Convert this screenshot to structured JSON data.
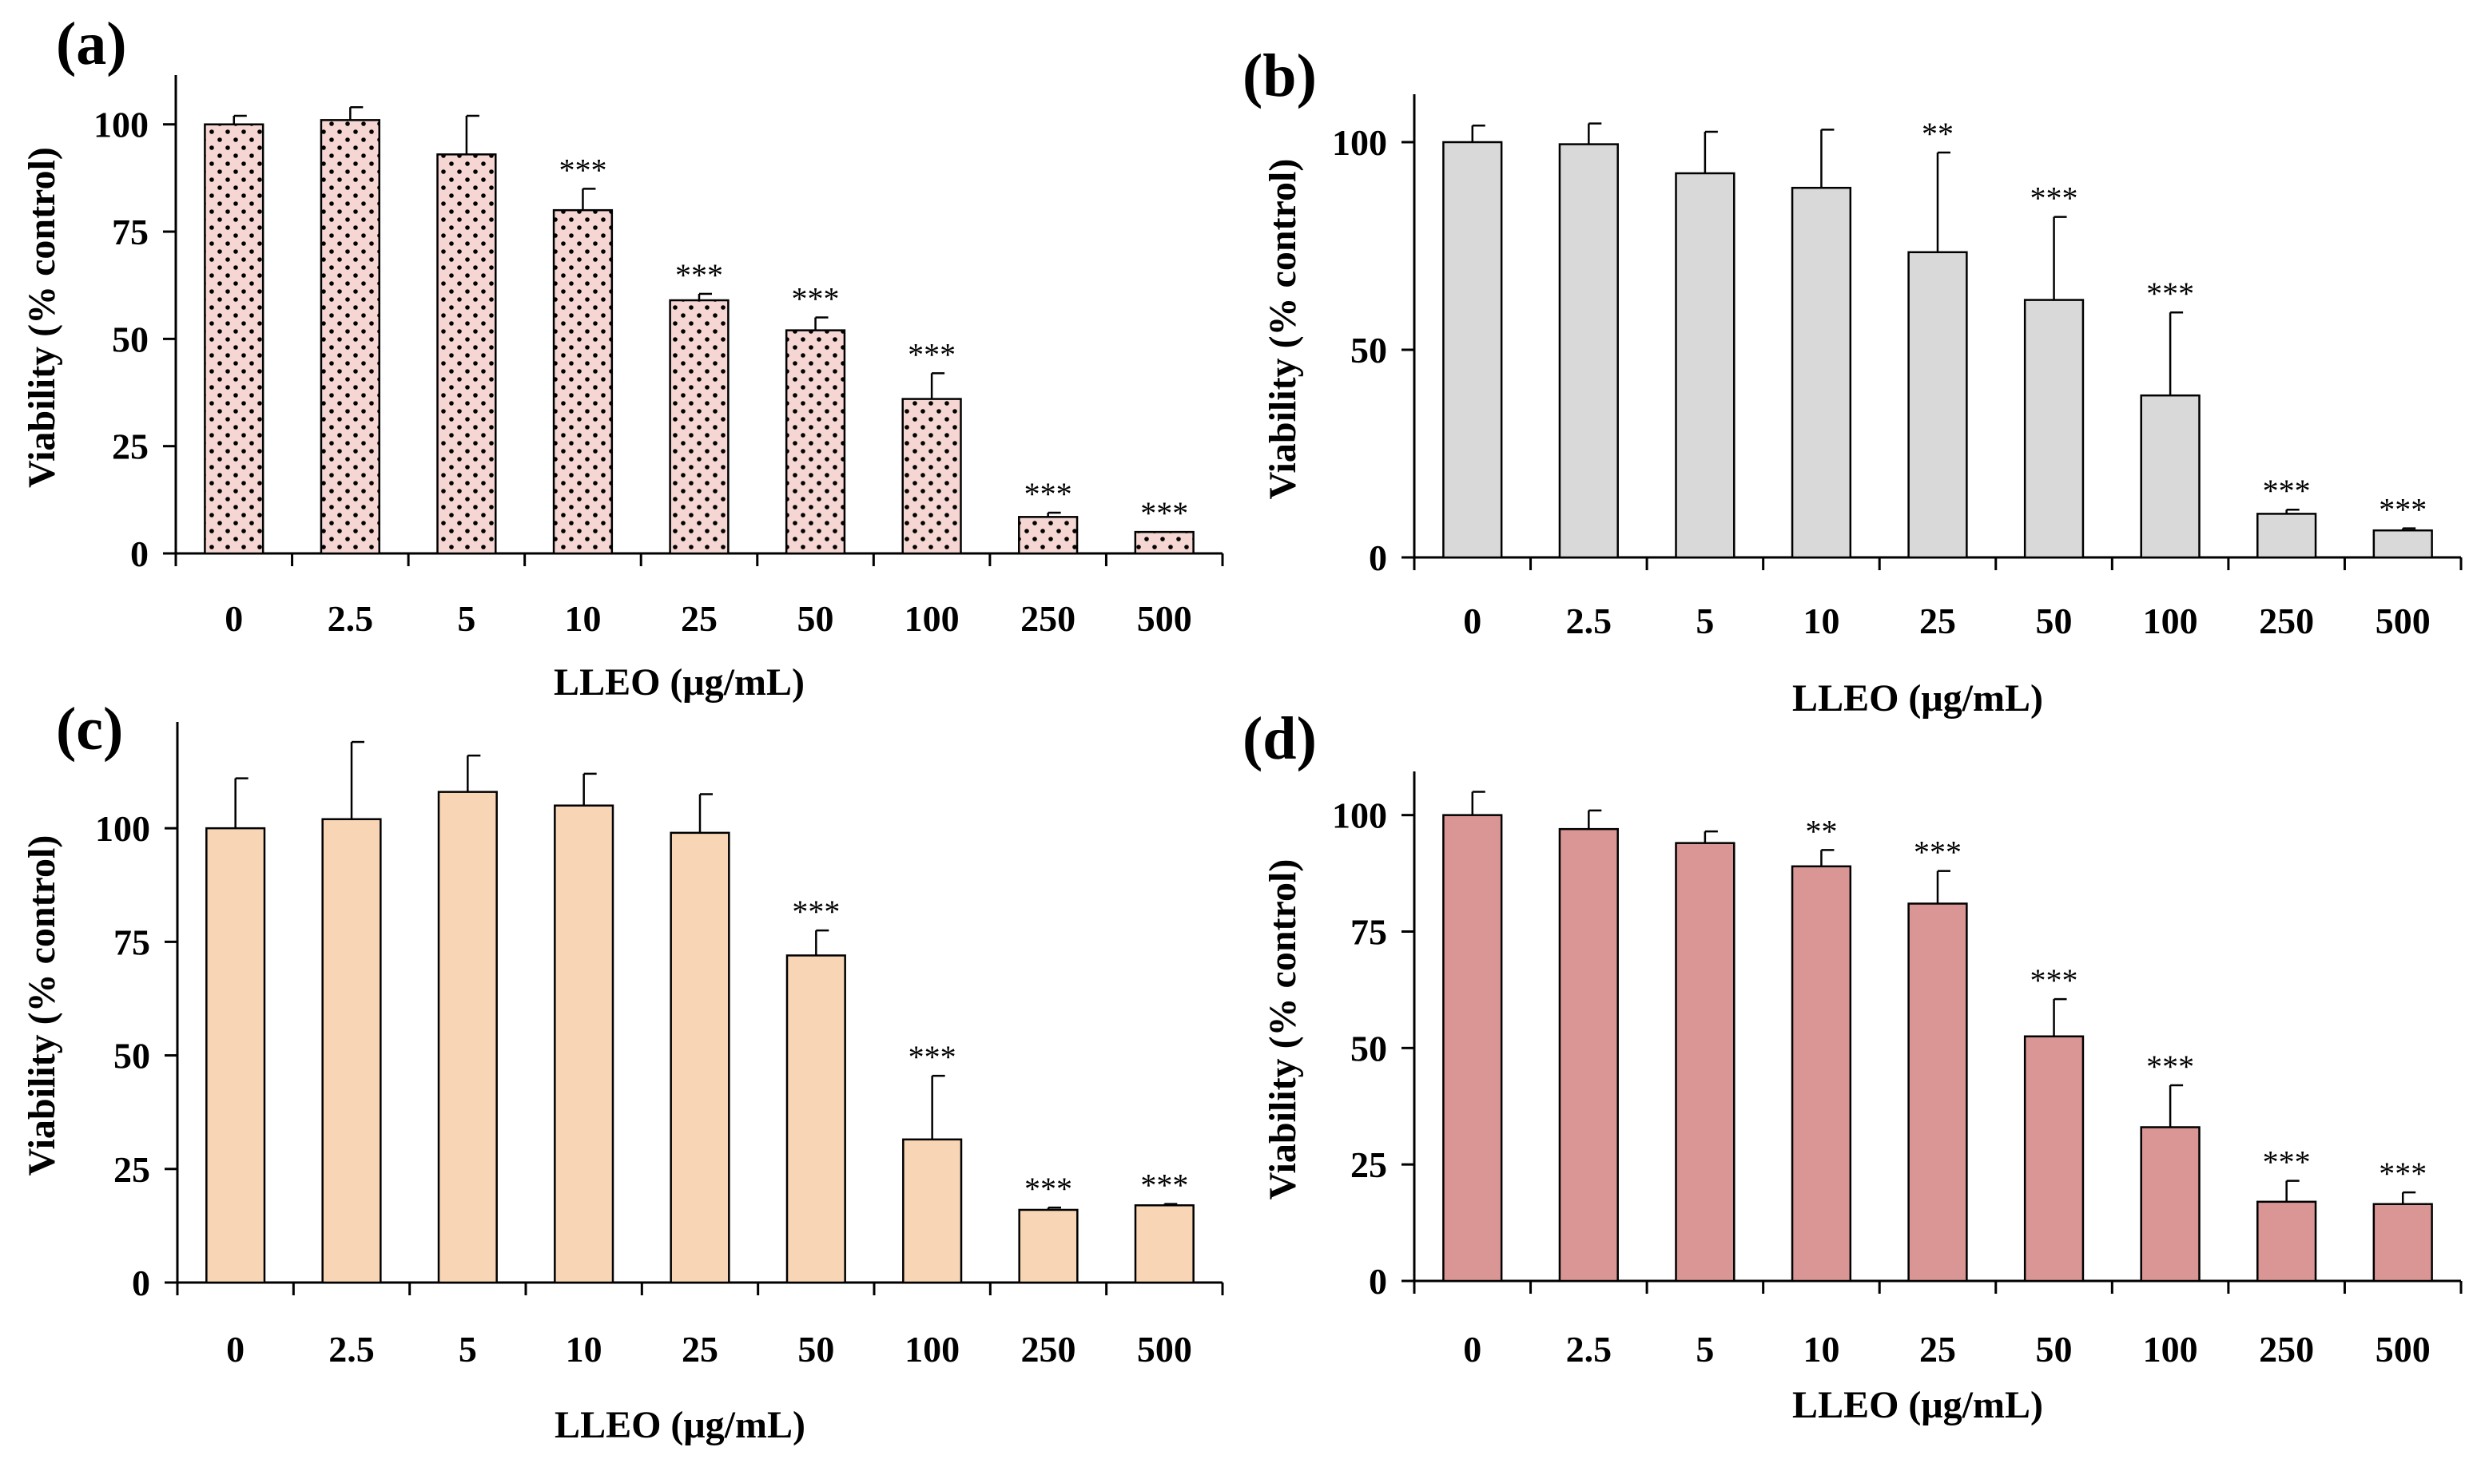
{
  "chart_data": [
    {
      "panel_label": "(a)",
      "type": "bar",
      "categories": [
        "0",
        "2.5",
        "5",
        "10",
        "25",
        "50",
        "100",
        "250",
        "500"
      ],
      "values": [
        100,
        101,
        93,
        80,
        59,
        52,
        36,
        8.5,
        5
      ],
      "errors": [
        2,
        3,
        9,
        5,
        1.5,
        3,
        6,
        1,
        0
      ],
      "significance": [
        "",
        "",
        "",
        "***",
        "***",
        "***",
        "***",
        "***",
        "***"
      ],
      "xlabel": "LLEO (μg/mL)",
      "ylabel": "Viability (% control)",
      "yticks": [
        0,
        25,
        50,
        75,
        100
      ],
      "ytick_labels": [
        "0",
        "25",
        "50",
        "75",
        "100"
      ],
      "ylim": [
        0,
        110
      ],
      "fill": "#f5d6d2",
      "pattern": "dots"
    },
    {
      "panel_label": "(b)",
      "type": "bar",
      "categories": [
        "0",
        "2.5",
        "5",
        "10",
        "25",
        "50",
        "100",
        "250",
        "500"
      ],
      "values": [
        100,
        99.5,
        92.5,
        89,
        73.5,
        62,
        39,
        10.5,
        6.5
      ],
      "errors": [
        4,
        5,
        10,
        14,
        24,
        20,
        20,
        1,
        0.5
      ],
      "significance": [
        "",
        "",
        "",
        "",
        "**",
        "***",
        "***",
        "***",
        "***"
      ],
      "xlabel": "LLEO (μg/mL)",
      "ylabel": "Viability (% control)",
      "yticks": [
        0,
        50,
        100
      ],
      "ytick_labels": [
        "0",
        "50",
        "100"
      ],
      "ylim": [
        0,
        110
      ],
      "fill": "#d9d9d9",
      "pattern": "none"
    },
    {
      "panel_label": "(c)",
      "type": "bar",
      "categories": [
        "0",
        "2.5",
        "5",
        "10",
        "25",
        "50",
        "100",
        "250",
        "500"
      ],
      "values": [
        100,
        102,
        108,
        105,
        99,
        72,
        31.5,
        16,
        17
      ],
      "errors": [
        11,
        17,
        8,
        7,
        8.5,
        5.5,
        14,
        0.5,
        0.3
      ],
      "significance": [
        "",
        "",
        "",
        "",
        "",
        "***",
        "***",
        "***",
        "***"
      ],
      "xlabel": "LLEO (μg/mL)",
      "ylabel": "Viability (% control)",
      "yticks": [
        0,
        25,
        50,
        75,
        100
      ],
      "ytick_labels": [
        "0",
        "25",
        "50",
        "75",
        "100"
      ],
      "ylim": [
        0,
        122
      ],
      "fill": "#f8d5b5",
      "pattern": "none"
    },
    {
      "panel_label": "(d)",
      "type": "bar",
      "categories": [
        "0",
        "2.5",
        "5",
        "10",
        "25",
        "50",
        "100",
        "250",
        "500"
      ],
      "values": [
        100,
        97,
        94,
        89,
        81,
        52.5,
        33,
        17,
        16.5
      ],
      "errors": [
        5,
        4,
        2.5,
        3.5,
        7,
        8,
        9,
        4.5,
        2.5
      ],
      "significance": [
        "",
        "",
        "",
        "**",
        "***",
        "***",
        "***",
        "***",
        "***"
      ],
      "xlabel": "LLEO (μg/mL)",
      "ylabel": "Viability (% control)",
      "yticks": [
        0,
        25,
        50,
        75,
        100
      ],
      "ytick_labels": [
        "0",
        "25",
        "50",
        "75",
        "100"
      ],
      "ylim": [
        0,
        108
      ],
      "fill": "#d99694",
      "pattern": "none"
    }
  ]
}
